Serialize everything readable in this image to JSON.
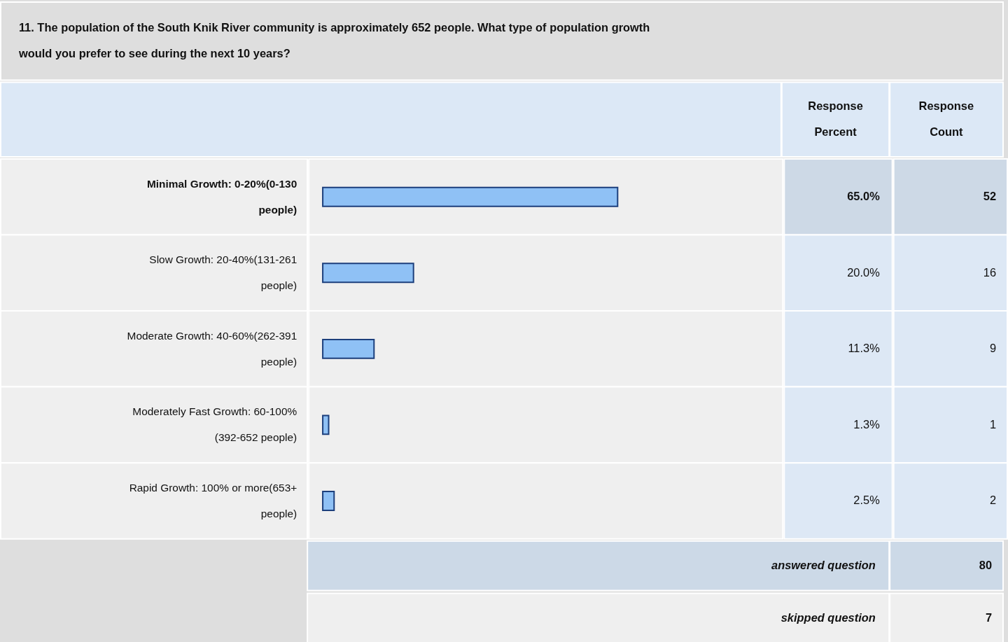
{
  "chart_data": {
    "type": "bar",
    "orientation": "horizontal",
    "title": "11. The population of the South Knik River community is approximately 652 people. What type of population growth would you prefer to see during the next 10 years?",
    "categories": [
      "Minimal Growth: 0-20%(0-130 people)",
      "Slow Growth: 20-40%(131-261 people)",
      "Moderate Growth: 40-60%(262-391 people)",
      "Moderately Fast Growth: 60-100% (392-652 people)",
      "Rapid Growth: 100% or more(653+ people)"
    ],
    "values": [
      65.0,
      20.0,
      11.3,
      1.3,
      2.5
    ],
    "value_labels": [
      "65.0%",
      "20.0%",
      "11.3%",
      "1.3%",
      "2.5%"
    ],
    "color": "#8fc1f5",
    "annotations": [
      "Response Percent",
      "Response Count",
      "52",
      "16",
      "9",
      "1",
      "2",
      "answered question",
      "80",
      "skipped question",
      "7"
    ]
  }
}
